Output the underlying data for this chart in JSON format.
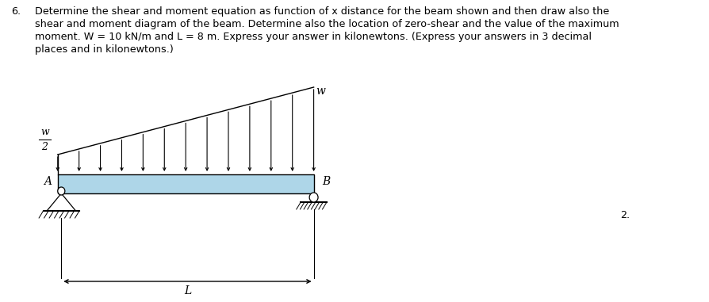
{
  "title_number": "6.",
  "title_text_line1": "Determine the shear and moment equation as function of x distance for the beam shown and then draw also the",
  "title_text_line2": "shear and moment diagram of the beam. Determine also the location of zero-shear and the value of the maximum",
  "title_text_line3": "moment. W = 10 kN/m and L = 8 m. Express your answer in kilonewtons. (Express your answers in 3 decimal",
  "title_text_line4": "places and in kilonewtons.)",
  "next_number": "2.",
  "beam_color": "#aed6e8",
  "beam_outline_color": "#000000",
  "label_w_top": "w",
  "label_A": "A",
  "label_B": "B",
  "label_L": "L",
  "background_color": "#ffffff",
  "text_color": "#000000"
}
